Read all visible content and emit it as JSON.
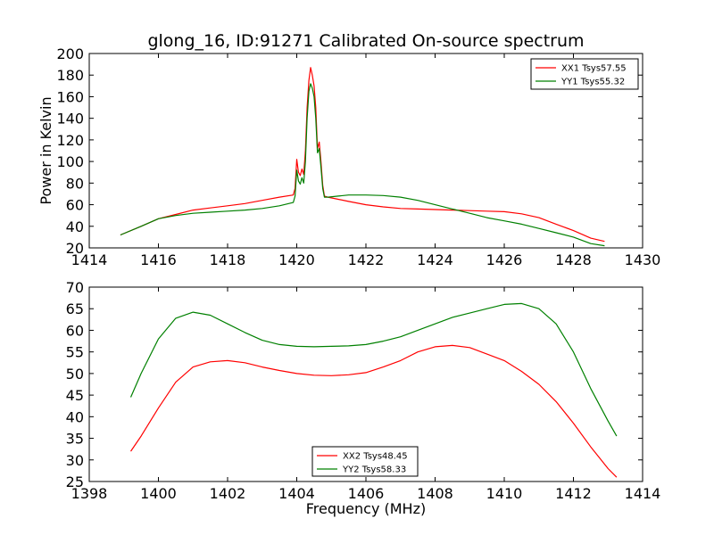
{
  "chart_data": [
    {
      "type": "line",
      "title": "glong_16, ID:91271 Calibrated On-source spectrum",
      "xlabel": "",
      "ylabel": "Power in Kelvin",
      "xlim": [
        1414,
        1430
      ],
      "ylim": [
        20,
        200
      ],
      "xticks": [
        "1414",
        "1416",
        "1418",
        "1420",
        "1422",
        "1424",
        "1426",
        "1428",
        "1430"
      ],
      "yticks": [
        "20",
        "40",
        "60",
        "80",
        "100",
        "120",
        "140",
        "160",
        "180",
        "200"
      ],
      "legend_position": "top-right",
      "grid": false,
      "series": [
        {
          "name": "XX1 Tsys57.55",
          "color": "#ff0000",
          "x": [
            1414.9,
            1415.5,
            1416.0,
            1416.5,
            1417.0,
            1417.5,
            1418.0,
            1418.5,
            1419.0,
            1419.5,
            1419.9,
            1419.95,
            1420.0,
            1420.05,
            1420.1,
            1420.15,
            1420.2,
            1420.25,
            1420.3,
            1420.35,
            1420.4,
            1420.45,
            1420.5,
            1420.55,
            1420.6,
            1420.65,
            1420.7,
            1420.75,
            1420.8,
            1420.9,
            1421.2,
            1421.5,
            1422.0,
            1422.5,
            1423.0,
            1423.5,
            1424.0,
            1424.5,
            1425.0,
            1425.5,
            1426.0,
            1426.5,
            1427.0,
            1427.5,
            1428.0,
            1428.5,
            1428.9
          ],
          "values": [
            32,
            40,
            47,
            51,
            55,
            57,
            59,
            61,
            64,
            67,
            69,
            75,
            102,
            90,
            87,
            93,
            88,
            110,
            150,
            175,
            187,
            180,
            170,
            150,
            112,
            118,
            100,
            78,
            68,
            67,
            65,
            63,
            60,
            58,
            56.5,
            56,
            55.5,
            55,
            54.5,
            54,
            53.5,
            51.5,
            48,
            42,
            36,
            29,
            26
          ]
        },
        {
          "name": "YY1 Tsys55.32",
          "color": "#008000",
          "x": [
            1414.9,
            1415.5,
            1416.0,
            1416.5,
            1417.0,
            1417.5,
            1418.0,
            1418.5,
            1419.0,
            1419.5,
            1419.9,
            1419.95,
            1420.0,
            1420.05,
            1420.1,
            1420.15,
            1420.2,
            1420.25,
            1420.3,
            1420.35,
            1420.4,
            1420.45,
            1420.5,
            1420.55,
            1420.6,
            1420.65,
            1420.7,
            1420.75,
            1420.8,
            1420.9,
            1421.2,
            1421.5,
            1422.0,
            1422.5,
            1423.0,
            1423.5,
            1424.0,
            1424.5,
            1425.0,
            1425.5,
            1426.0,
            1426.5,
            1427.0,
            1427.5,
            1428.0,
            1428.5,
            1428.9
          ],
          "values": [
            32,
            40,
            47,
            50,
            52,
            53,
            54,
            55,
            56.5,
            59,
            62,
            68,
            92,
            82,
            79,
            85,
            80,
            100,
            140,
            165,
            172,
            168,
            160,
            140,
            108,
            112,
            95,
            75,
            67,
            67,
            68,
            69,
            69,
            68.5,
            67,
            64,
            60,
            56,
            52,
            48,
            45,
            42,
            38,
            34,
            30,
            24,
            22
          ]
        }
      ]
    },
    {
      "type": "line",
      "title": "",
      "xlabel": "Frequency (MHz)",
      "ylabel": "",
      "xlim": [
        1398,
        1414
      ],
      "ylim": [
        25,
        70
      ],
      "xticks": [
        "1398",
        "1400",
        "1402",
        "1404",
        "1406",
        "1408",
        "1410",
        "1412",
        "1414"
      ],
      "yticks": [
        "25",
        "30",
        "35",
        "40",
        "45",
        "50",
        "55",
        "60",
        "65",
        "70"
      ],
      "legend_position": "bottom-center",
      "grid": false,
      "series": [
        {
          "name": "XX2 Tsys48.45",
          "color": "#ff0000",
          "x": [
            1399.2,
            1399.5,
            1400.0,
            1400.5,
            1401.0,
            1401.5,
            1402.0,
            1402.5,
            1403.0,
            1403.5,
            1404.0,
            1404.5,
            1405.0,
            1405.5,
            1406.0,
            1406.5,
            1407.0,
            1407.5,
            1408.0,
            1408.5,
            1409.0,
            1409.5,
            1410.0,
            1410.5,
            1411.0,
            1411.5,
            1412.0,
            1412.5,
            1413.0,
            1413.25
          ],
          "values": [
            32,
            35.5,
            42,
            48,
            51.5,
            52.7,
            53,
            52.5,
            51.5,
            50.7,
            50,
            49.6,
            49.5,
            49.7,
            50.2,
            51.5,
            53,
            55,
            56.2,
            56.5,
            56,
            54.5,
            53,
            50.5,
            47.5,
            43.5,
            38.5,
            33,
            28,
            26
          ]
        },
        {
          "name": "YY2 Tsys58.33",
          "color": "#008000",
          "x": [
            1399.2,
            1399.5,
            1400.0,
            1400.5,
            1401.0,
            1401.5,
            1402.0,
            1402.5,
            1403.0,
            1403.5,
            1404.0,
            1404.5,
            1405.0,
            1405.5,
            1406.0,
            1406.5,
            1407.0,
            1407.5,
            1408.0,
            1408.5,
            1409.0,
            1409.5,
            1410.0,
            1410.5,
            1411.0,
            1411.5,
            1412.0,
            1412.5,
            1413.0,
            1413.25
          ],
          "values": [
            44.5,
            50,
            58,
            62.8,
            64.2,
            63.5,
            61.5,
            59.5,
            57.7,
            56.7,
            56.3,
            56.2,
            56.3,
            56.4,
            56.7,
            57.5,
            58.5,
            60,
            61.5,
            63,
            64,
            65,
            66,
            66.2,
            65,
            61.5,
            55,
            46.5,
            39,
            35.5
          ]
        }
      ]
    }
  ]
}
